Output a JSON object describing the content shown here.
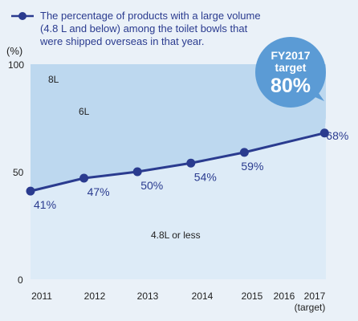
{
  "legend": {
    "lines": [
      "The percentage of products with a large volume",
      "(4.8 L and below) among the toilet bowls that",
      "were shipped overseas in that year."
    ]
  },
  "target_badge": {
    "line1": "FY2017",
    "line2": "target",
    "value": "80%"
  },
  "colors": {
    "page_background": "#eaf1f8",
    "plot_background": "#ffffff",
    "area_8l_6l": "#bdd8ef",
    "area_4_8l": "#ddebf7",
    "series_line": "#2a3b8f",
    "target_badge": "#5b9bd5"
  },
  "chart_data": {
    "type": "line",
    "title": "",
    "xlabel": "",
    "ylabel": "(%)",
    "x": [
      "2011",
      "2012",
      "2013",
      "2014",
      "2015",
      "2016",
      "2017"
    ],
    "x_sublabels": [
      "",
      "",
      "",
      "",
      "",
      "",
      "(target)"
    ],
    "ylim": [
      0,
      100
    ],
    "yticks": [
      "0",
      "50",
      "100"
    ],
    "grid": false,
    "series": [
      {
        "name": "The percentage of products with a large volume (4.8 L and below) among the toilet bowls that were shipped overseas in that year.",
        "x": [
          2011,
          2012,
          2013,
          2014,
          2015,
          2016.5
        ],
        "values": [
          41,
          47,
          50,
          54,
          59,
          68
        ],
        "labels": [
          "41%",
          "47%",
          "50%",
          "54%",
          "59%",
          "68%"
        ]
      }
    ],
    "target": {
      "x": 2017,
      "value": 80,
      "label": "80%"
    },
    "region_labels": [
      "8L",
      "6L",
      "4.8L or less"
    ]
  }
}
